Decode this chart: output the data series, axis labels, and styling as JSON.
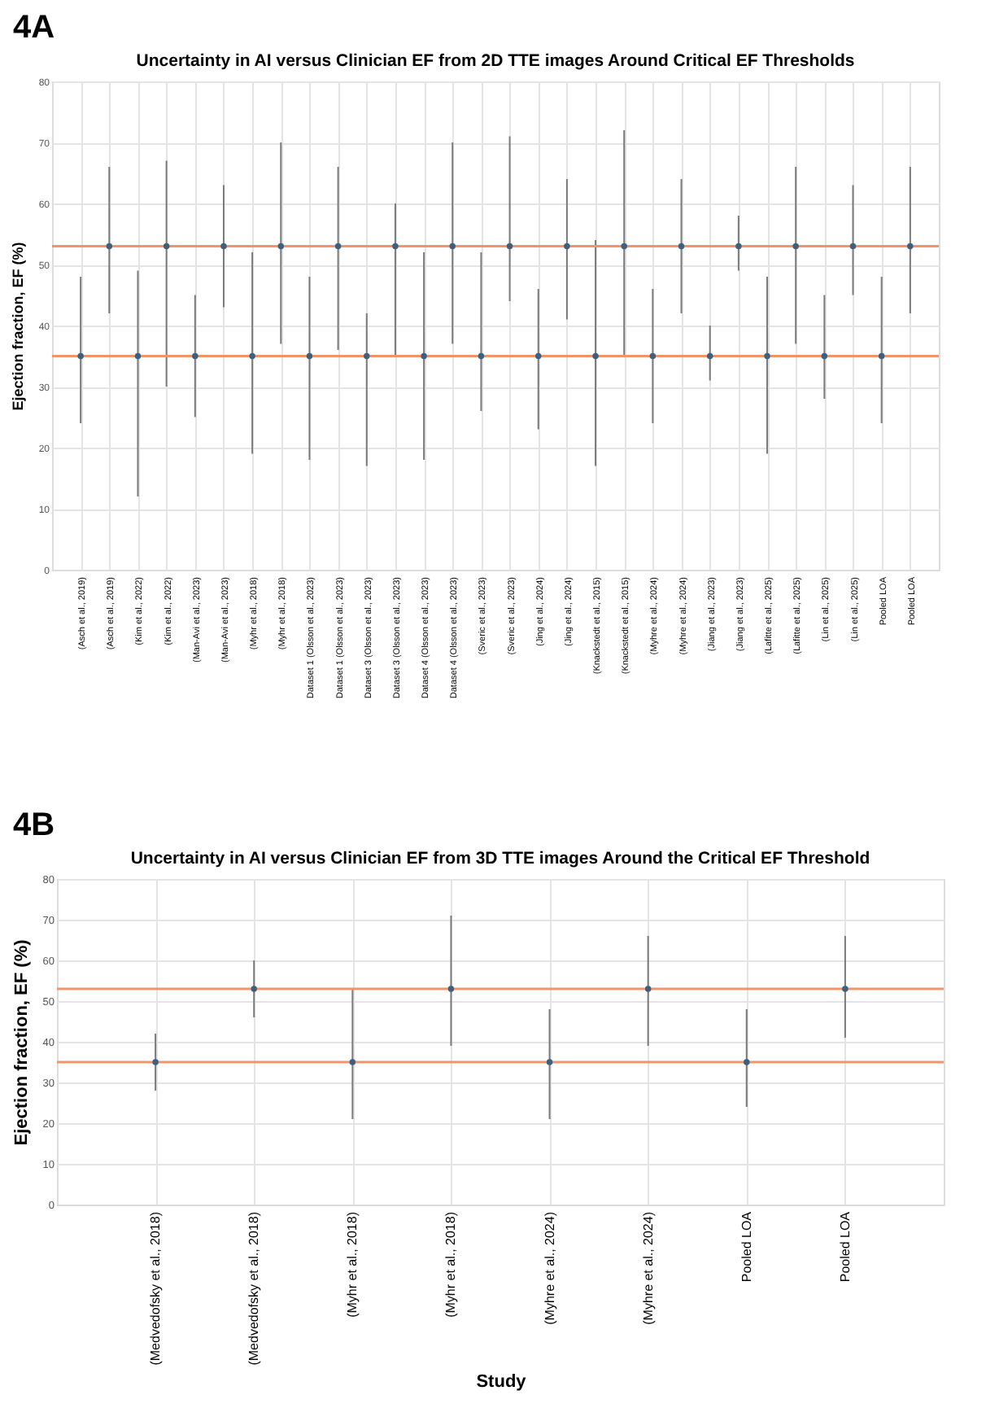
{
  "chart_data": [
    {
      "type": "scatter",
      "annotations": [
        "4A"
      ],
      "title": "Uncertainty in AI versus Clinician EF from 2D TTE images Around Critical EF Thresholds",
      "ylabel": "Ejection fraction, EF (%)",
      "categories": [
        "(Asch et al., 2019)",
        "(Asch et al., 2019)",
        "(Kim et al., 2022)",
        "(Kim et al., 2022)",
        "(Man-Avi et al., 2023)",
        "(Man-Avi et al., 2023)",
        "(Myhr et al., 2018)",
        "(Myhr et al., 2018)",
        "Dataset 1 (Olsson et al., 2023)",
        "Dataset 1 (Olsson et al., 2023)",
        "Dataset 3 (Olsson et al., 2023)",
        "Dataset 3 (Olsson et al., 2023)",
        "Dataset 4 (Olsson et al., 2023)",
        "Dataset 4 (Olsson et al., 2023)",
        "(Sveric et al., 2023)",
        "(Sveric et al., 2023)",
        "(Jing et al., 2024)",
        "(Jing et al., 2024)",
        "(Knackstedt et al., 2015)",
        "(Knackstedt et al., 2015)",
        "(Myhre et al., 2024)",
        "(Myhre et al., 2024)",
        "(Jiang et al., 2023)",
        "(Jiang et al., 2023)",
        "(Lafitte et al., 2025)",
        "(Lafitte et al., 2025)",
        "(Lin et al., 2025)",
        "(Lin et al., 2025)",
        "Pooled LOA",
        "Pooled LOA"
      ],
      "values": [
        35,
        53,
        35,
        53,
        35,
        53,
        35,
        53,
        35,
        53,
        35,
        53,
        35,
        53,
        35,
        53,
        35,
        53,
        35,
        53,
        35,
        53,
        35,
        53,
        35,
        53,
        35,
        53,
        35,
        53
      ],
      "errors": [
        [
          24,
          48
        ],
        [
          42,
          66
        ],
        [
          12,
          49
        ],
        [
          30,
          67
        ],
        [
          25,
          45
        ],
        [
          43,
          63
        ],
        [
          19,
          52
        ],
        [
          37,
          70
        ],
        [
          18,
          48
        ],
        [
          36,
          66
        ],
        [
          17,
          42
        ],
        [
          35,
          60
        ],
        [
          18,
          52
        ],
        [
          37,
          70
        ],
        [
          26,
          52
        ],
        [
          44,
          71
        ],
        [
          23,
          46
        ],
        [
          41,
          64
        ],
        [
          17,
          54
        ],
        [
          35,
          72
        ],
        [
          24,
          46
        ],
        [
          42,
          64
        ],
        [
          31,
          40
        ],
        [
          49,
          58
        ],
        [
          19,
          48
        ],
        [
          37,
          66
        ],
        [
          28,
          45
        ],
        [
          45,
          63
        ],
        [
          24,
          48
        ],
        [
          42,
          66
        ]
      ],
      "color": "#3f5f7f",
      "marker": "circle",
      "grid": true,
      "ylim": [
        0,
        80
      ],
      "yticks": [
        0,
        10,
        20,
        30,
        40,
        50,
        60,
        70,
        80
      ],
      "ref_lines": [
        {
          "axis": "y",
          "value": 35,
          "color": "#f0956a"
        },
        {
          "axis": "y",
          "value": 53,
          "color": "#f0956a"
        }
      ]
    },
    {
      "type": "scatter",
      "annotations": [
        "4B"
      ],
      "title": "Uncertainty in AI versus Clinician EF from 3D TTE images Around the Critical EF Threshold",
      "xlabel": "Study",
      "ylabel": "Ejection fraction, EF (%)",
      "categories": [
        "(Medvedofsky et al., 2018)",
        "(Medvedofsky et al., 2018)",
        "(Myhr et al., 2018)",
        "(Myhr et al., 2018)",
        "(Myhre et al., 2024)",
        "(Myhre et al., 2024)",
        "Pooled LOA",
        "Pooled LOA"
      ],
      "values": [
        35,
        53,
        35,
        53,
        35,
        53,
        35,
        53
      ],
      "errors": [
        [
          28,
          42
        ],
        [
          46,
          60
        ],
        [
          21,
          53
        ],
        [
          39,
          71
        ],
        [
          21,
          48
        ],
        [
          39,
          66
        ],
        [
          24,
          48
        ],
        [
          41,
          66
        ]
      ],
      "color": "#3f5f7f",
      "marker": "circle",
      "grid": true,
      "ylim": [
        0,
        80
      ],
      "yticks": [
        0,
        10,
        20,
        30,
        40,
        50,
        60,
        70,
        80
      ],
      "ref_lines": [
        {
          "axis": "y",
          "value": 35,
          "color": "#f0956a"
        },
        {
          "axis": "y",
          "value": 53,
          "color": "#f0956a"
        }
      ]
    }
  ]
}
